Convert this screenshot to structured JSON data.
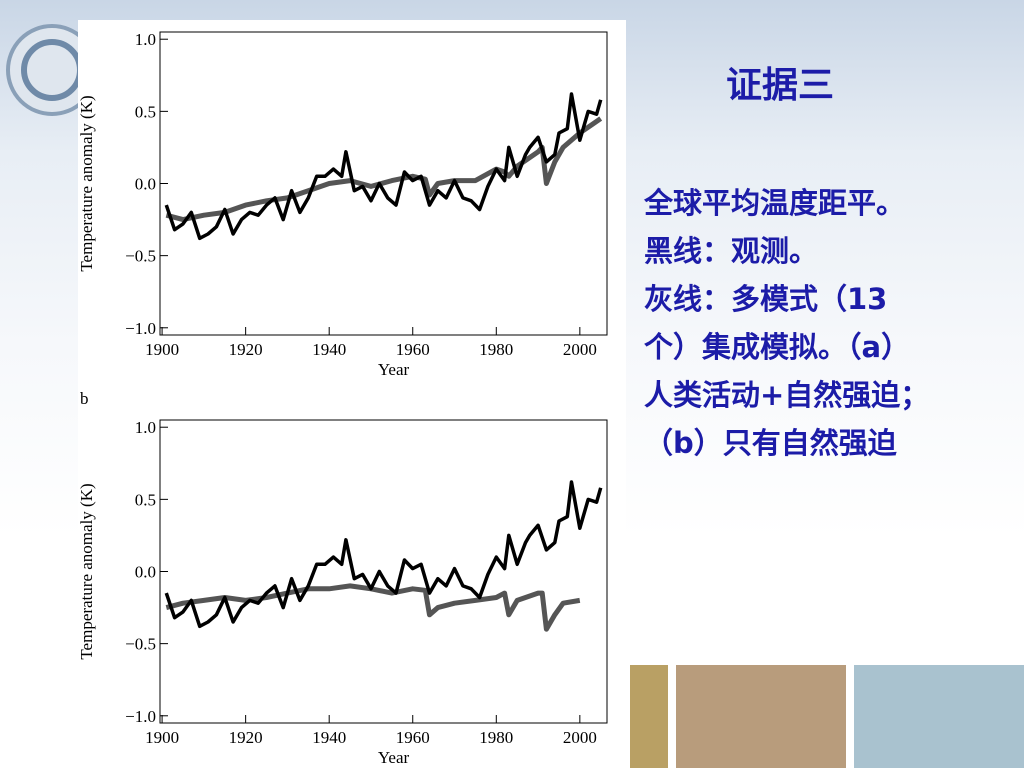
{
  "slide": {
    "title": "证据三",
    "lines": [
      "全球平均温度距平。",
      "黑线：观测。",
      "灰线：多模式（13",
      "个）集成模拟。（a）",
      "人类活动+自然强迫；",
      "（b）只有自然强迫"
    ]
  },
  "chart_data": [
    {
      "type": "line",
      "xlabel": "Year",
      "ylabel": "Temperature anomaly (K)",
      "xlim": [
        1899.5,
        2006.5
      ],
      "ylim": [
        -1.05,
        1.05
      ],
      "xticks": [
        1900,
        1920,
        1940,
        1960,
        1980,
        2000
      ],
      "yticks": [
        {
          "value": -1.0,
          "label": "−1.0"
        },
        {
          "value": -0.5,
          "label": "−0.5"
        },
        {
          "value": 0.0,
          "label": "0.0"
        },
        {
          "value": 0.5,
          "label": "0.5"
        },
        {
          "value": 1.0,
          "label": "1.0"
        }
      ],
      "series": [
        {
          "color": "#555555",
          "x": [
            1901,
            1905,
            1910,
            1915,
            1920,
            1925,
            1930,
            1935,
            1940,
            1945,
            1950,
            1955,
            1960,
            1963,
            1964,
            1966,
            1970,
            1975,
            1980,
            1982,
            1983,
            1985,
            1990,
            1991,
            1992,
            1994,
            1996,
            2000,
            2005
          ],
          "values": [
            -0.22,
            -0.25,
            -0.22,
            -0.2,
            -0.15,
            -0.12,
            -0.1,
            -0.05,
            0.0,
            0.02,
            -0.02,
            0.02,
            0.05,
            0.03,
            -0.08,
            0.0,
            0.02,
            0.02,
            0.1,
            0.08,
            0.05,
            0.12,
            0.22,
            0.25,
            0.0,
            0.15,
            0.25,
            0.35,
            0.45
          ]
        },
        {
          "color": "#000000",
          "x": [
            1901,
            1903,
            1905,
            1907,
            1909,
            1911,
            1913,
            1915,
            1917,
            1919,
            1921,
            1923,
            1925,
            1927,
            1929,
            1931,
            1933,
            1935,
            1937,
            1939,
            1941,
            1943,
            1944,
            1946,
            1948,
            1950,
            1952,
            1954,
            1956,
            1958,
            1960,
            1962,
            1964,
            1966,
            1968,
            1970,
            1972,
            1974,
            1976,
            1978,
            1980,
            1982,
            1983,
            1985,
            1987,
            1988,
            1990,
            1992,
            1994,
            1995,
            1997,
            1998,
            2000,
            2002,
            2004,
            2005
          ],
          "values": [
            -0.15,
            -0.32,
            -0.28,
            -0.2,
            -0.38,
            -0.35,
            -0.3,
            -0.18,
            -0.35,
            -0.25,
            -0.2,
            -0.22,
            -0.15,
            -0.1,
            -0.25,
            -0.05,
            -0.2,
            -0.1,
            0.05,
            0.05,
            0.1,
            0.05,
            0.22,
            -0.05,
            -0.02,
            -0.12,
            0.0,
            -0.1,
            -0.15,
            0.08,
            0.02,
            0.05,
            -0.15,
            -0.05,
            -0.1,
            0.02,
            -0.1,
            -0.12,
            -0.18,
            -0.02,
            0.1,
            0.02,
            0.25,
            0.05,
            0.2,
            0.25,
            0.32,
            0.15,
            0.2,
            0.35,
            0.38,
            0.62,
            0.3,
            0.5,
            0.48,
            0.58
          ]
        }
      ]
    },
    {
      "type": "line",
      "panel": "b",
      "xlabel": "Year",
      "ylabel": "Temperature anomaly (K)",
      "xlim": [
        1899.5,
        2006.5
      ],
      "ylim": [
        -1.05,
        1.05
      ],
      "xticks": [
        1900,
        1920,
        1940,
        1960,
        1980,
        2000
      ],
      "yticks": [
        {
          "value": -1.0,
          "label": "−1.0"
        },
        {
          "value": -0.5,
          "label": "−0.5"
        },
        {
          "value": 0.0,
          "label": "0.0"
        },
        {
          "value": 0.5,
          "label": "0.5"
        },
        {
          "value": 1.0,
          "label": "1.0"
        }
      ],
      "series": [
        {
          "color": "#555555",
          "x": [
            1901,
            1905,
            1910,
            1915,
            1920,
            1925,
            1930,
            1935,
            1940,
            1945,
            1950,
            1955,
            1960,
            1963,
            1964,
            1966,
            1970,
            1975,
            1980,
            1982,
            1983,
            1985,
            1990,
            1991,
            1992,
            1994,
            1996,
            2000
          ],
          "values": [
            -0.25,
            -0.22,
            -0.2,
            -0.18,
            -0.2,
            -0.18,
            -0.15,
            -0.12,
            -0.12,
            -0.1,
            -0.12,
            -0.15,
            -0.12,
            -0.13,
            -0.3,
            -0.25,
            -0.22,
            -0.2,
            -0.18,
            -0.15,
            -0.3,
            -0.2,
            -0.15,
            -0.15,
            -0.4,
            -0.3,
            -0.22,
            -0.2
          ]
        },
        {
          "color": "#000000",
          "x": [
            1901,
            1903,
            1905,
            1907,
            1909,
            1911,
            1913,
            1915,
            1917,
            1919,
            1921,
            1923,
            1925,
            1927,
            1929,
            1931,
            1933,
            1935,
            1937,
            1939,
            1941,
            1943,
            1944,
            1946,
            1948,
            1950,
            1952,
            1954,
            1956,
            1958,
            1960,
            1962,
            1964,
            1966,
            1968,
            1970,
            1972,
            1974,
            1976,
            1978,
            1980,
            1982,
            1983,
            1985,
            1987,
            1988,
            1990,
            1992,
            1994,
            1995,
            1997,
            1998,
            2000,
            2002,
            2004,
            2005
          ],
          "values": [
            -0.15,
            -0.32,
            -0.28,
            -0.2,
            -0.38,
            -0.35,
            -0.3,
            -0.18,
            -0.35,
            -0.25,
            -0.2,
            -0.22,
            -0.15,
            -0.1,
            -0.25,
            -0.05,
            -0.2,
            -0.1,
            0.05,
            0.05,
            0.1,
            0.05,
            0.22,
            -0.05,
            -0.02,
            -0.12,
            0.0,
            -0.1,
            -0.15,
            0.08,
            0.02,
            0.05,
            -0.15,
            -0.05,
            -0.1,
            0.02,
            -0.1,
            -0.12,
            -0.18,
            -0.02,
            0.1,
            0.02,
            0.25,
            0.05,
            0.2,
            0.25,
            0.32,
            0.15,
            0.2,
            0.35,
            0.38,
            0.62,
            0.3,
            0.5,
            0.48,
            0.58
          ]
        }
      ]
    }
  ]
}
